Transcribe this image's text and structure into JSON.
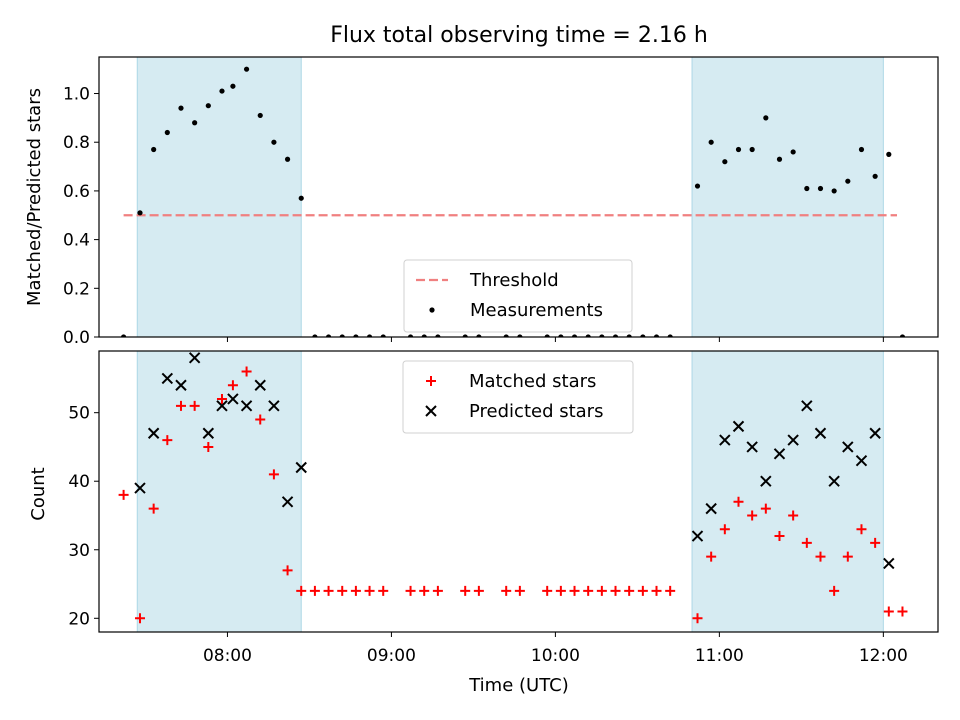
{
  "chart_data": [
    {
      "type": "scatter",
      "title": "Flux total observing time = 2.16 h",
      "ylabel": "Matched/Predicted stars",
      "xlabel": "",
      "xlim": [
        "07:13",
        "12:20"
      ],
      "ylim": [
        0,
        1.15
      ],
      "yticks": [
        "0.0",
        "0.2",
        "0.4",
        "0.6",
        "0.8",
        "1.0"
      ],
      "shaded_intervals": [
        [
          "07:27",
          "08:27"
        ],
        [
          "10:50",
          "12:00"
        ]
      ],
      "threshold": {
        "name": "Threshold",
        "value": 0.5,
        "x_range": [
          "07:22",
          "12:05"
        ],
        "color": "#f08080"
      },
      "legend_position": "lower center",
      "series": [
        {
          "name": "Measurements",
          "color": "#000000",
          "points": [
            [
              "07:22",
              0.0
            ],
            [
              "07:28",
              0.51
            ],
            [
              "07:33",
              0.77
            ],
            [
              "07:38",
              0.84
            ],
            [
              "07:43",
              0.94
            ],
            [
              "07:48",
              0.88
            ],
            [
              "07:53",
              0.95
            ],
            [
              "07:58",
              1.01
            ],
            [
              "08:02",
              1.03
            ],
            [
              "08:07",
              1.1
            ],
            [
              "08:12",
              0.91
            ],
            [
              "08:17",
              0.8
            ],
            [
              "08:22",
              0.73
            ],
            [
              "08:27",
              0.57
            ],
            [
              "08:32",
              0.0
            ],
            [
              "08:37",
              0.0
            ],
            [
              "08:42",
              0.0
            ],
            [
              "08:47",
              0.0
            ],
            [
              "08:52",
              0.0
            ],
            [
              "08:57",
              0.0
            ],
            [
              "09:07",
              0.0
            ],
            [
              "09:12",
              0.0
            ],
            [
              "09:17",
              0.0
            ],
            [
              "09:27",
              0.0
            ],
            [
              "09:32",
              0.0
            ],
            [
              "09:42",
              0.0
            ],
            [
              "09:47",
              0.0
            ],
            [
              "09:57",
              0.0
            ],
            [
              "10:02",
              0.0
            ],
            [
              "10:07",
              0.0
            ],
            [
              "10:12",
              0.0
            ],
            [
              "10:17",
              0.0
            ],
            [
              "10:22",
              0.0
            ],
            [
              "10:27",
              0.0
            ],
            [
              "10:32",
              0.0
            ],
            [
              "10:37",
              0.0
            ],
            [
              "10:42",
              0.0
            ],
            [
              "10:52",
              0.62
            ],
            [
              "10:57",
              0.8
            ],
            [
              "11:02",
              0.72
            ],
            [
              "11:07",
              0.77
            ],
            [
              "11:12",
              0.77
            ],
            [
              "11:17",
              0.9
            ],
            [
              "11:22",
              0.73
            ],
            [
              "11:27",
              0.76
            ],
            [
              "11:32",
              0.61
            ],
            [
              "11:37",
              0.61
            ],
            [
              "11:42",
              0.6
            ],
            [
              "11:47",
              0.64
            ],
            [
              "11:52",
              0.77
            ],
            [
              "11:57",
              0.66
            ],
            [
              "12:02",
              0.75
            ],
            [
              "12:07",
              0.0
            ]
          ]
        }
      ]
    },
    {
      "type": "scatter",
      "title": "",
      "xlabel": "Time (UTC)",
      "ylabel": "Count",
      "xlim": [
        "07:13",
        "12:20"
      ],
      "ylim": [
        18,
        59
      ],
      "xticks": [
        "08:00",
        "09:00",
        "10:00",
        "11:00",
        "12:00"
      ],
      "yticks": [
        "20",
        "30",
        "40",
        "50"
      ],
      "shaded_intervals": [
        [
          "07:27",
          "08:27"
        ],
        [
          "10:50",
          "12:00"
        ]
      ],
      "legend_position": "upper center",
      "series": [
        {
          "name": "Matched stars",
          "marker": "plus",
          "color": "#ff0000",
          "points": [
            [
              "07:22",
              38
            ],
            [
              "07:28",
              20
            ],
            [
              "07:33",
              36
            ],
            [
              "07:38",
              46
            ],
            [
              "07:43",
              51
            ],
            [
              "07:48",
              51
            ],
            [
              "07:53",
              45
            ],
            [
              "07:58",
              52
            ],
            [
              "08:02",
              54
            ],
            [
              "08:07",
              56
            ],
            [
              "08:12",
              49
            ],
            [
              "08:17",
              41
            ],
            [
              "08:22",
              27
            ],
            [
              "08:27",
              24
            ],
            [
              "08:32",
              24
            ],
            [
              "08:37",
              24
            ],
            [
              "08:42",
              24
            ],
            [
              "08:47",
              24
            ],
            [
              "08:52",
              24
            ],
            [
              "08:57",
              24
            ],
            [
              "09:07",
              24
            ],
            [
              "09:12",
              24
            ],
            [
              "09:17",
              24
            ],
            [
              "09:27",
              24
            ],
            [
              "09:32",
              24
            ],
            [
              "09:42",
              24
            ],
            [
              "09:47",
              24
            ],
            [
              "09:57",
              24
            ],
            [
              "10:02",
              24
            ],
            [
              "10:07",
              24
            ],
            [
              "10:12",
              24
            ],
            [
              "10:17",
              24
            ],
            [
              "10:22",
              24
            ],
            [
              "10:27",
              24
            ],
            [
              "10:32",
              24
            ],
            [
              "10:37",
              24
            ],
            [
              "10:42",
              24
            ],
            [
              "10:52",
              20
            ],
            [
              "10:57",
              29
            ],
            [
              "11:02",
              33
            ],
            [
              "11:07",
              37
            ],
            [
              "11:12",
              35
            ],
            [
              "11:17",
              36
            ],
            [
              "11:22",
              32
            ],
            [
              "11:27",
              35
            ],
            [
              "11:32",
              31
            ],
            [
              "11:37",
              29
            ],
            [
              "11:42",
              24
            ],
            [
              "11:47",
              29
            ],
            [
              "11:52",
              33
            ],
            [
              "11:57",
              31
            ],
            [
              "12:02",
              21
            ],
            [
              "12:07",
              21
            ]
          ]
        },
        {
          "name": "Predicted stars",
          "marker": "x",
          "color": "#000000",
          "points": [
            [
              "07:28",
              39
            ],
            [
              "07:33",
              47
            ],
            [
              "07:38",
              55
            ],
            [
              "07:43",
              54
            ],
            [
              "07:48",
              58
            ],
            [
              "07:53",
              47
            ],
            [
              "07:58",
              51
            ],
            [
              "08:02",
              52
            ],
            [
              "08:07",
              51
            ],
            [
              "08:12",
              54
            ],
            [
              "08:17",
              51
            ],
            [
              "08:22",
              37
            ],
            [
              "08:27",
              42
            ],
            [
              "10:52",
              32
            ],
            [
              "10:57",
              36
            ],
            [
              "11:02",
              46
            ],
            [
              "11:07",
              48
            ],
            [
              "11:12",
              45
            ],
            [
              "11:17",
              40
            ],
            [
              "11:22",
              44
            ],
            [
              "11:27",
              46
            ],
            [
              "11:32",
              51
            ],
            [
              "11:37",
              47
            ],
            [
              "11:42",
              40
            ],
            [
              "11:47",
              45
            ],
            [
              "11:52",
              43
            ],
            [
              "11:57",
              47
            ],
            [
              "12:02",
              28
            ]
          ]
        }
      ]
    }
  ]
}
